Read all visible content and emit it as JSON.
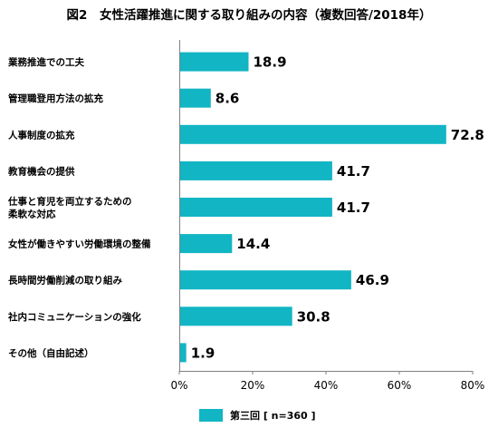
{
  "chart_data": {
    "type": "bar",
    "orientation": "horizontal",
    "title": "図2　女性活躍推進に関する取り組みの内容（複数回答/2018年）",
    "categories": [
      [
        "業務推進での工夫"
      ],
      [
        "管理職登用方法の拡充"
      ],
      [
        "人事制度の拡充"
      ],
      [
        "教育機会の提供"
      ],
      [
        "仕事と育児を両立するための",
        "柔軟な対応"
      ],
      [
        "女性が働きやすい労働環境の整備"
      ],
      [
        "長時間労働削減の取り組み"
      ],
      [
        "社内コミュニケーションの強化"
      ],
      [
        "その他（自由記述）"
      ]
    ],
    "series": [
      {
        "name": "第三回 [ n=360 ]",
        "color": "#12b5c4",
        "values": [
          18.9,
          8.6,
          72.8,
          41.7,
          41.7,
          14.4,
          46.9,
          30.8,
          1.9
        ]
      }
    ],
    "x_ticks": [
      "0%",
      "20%",
      "40%",
      "60%",
      "80%"
    ],
    "xlim": [
      0,
      80
    ],
    "grid": false,
    "legend": "bottom-center"
  }
}
